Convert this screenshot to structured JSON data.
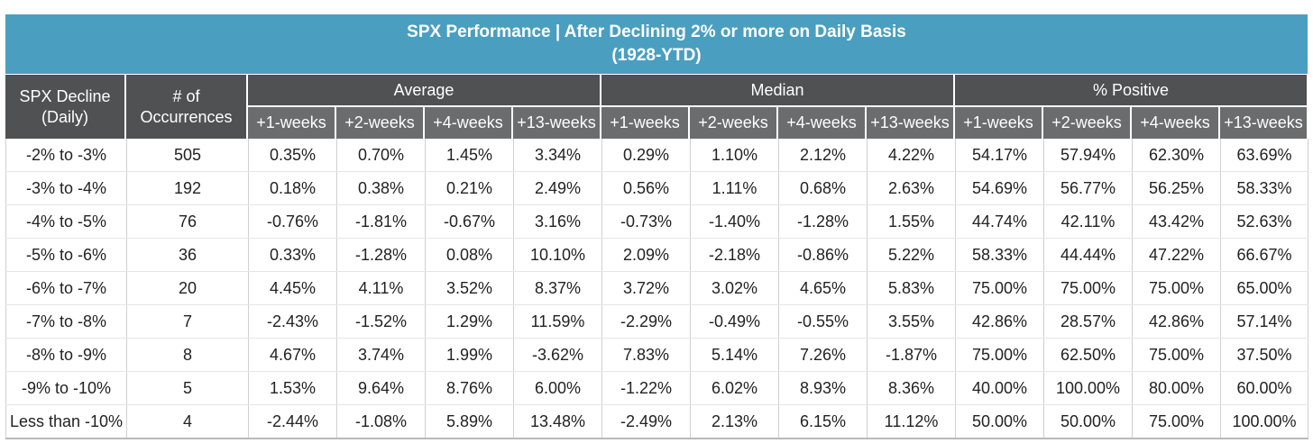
{
  "title": {
    "line1": "SPX Performance | After Declining 2% or more on Daily Basis",
    "line2": "(1928-YTD)"
  },
  "columns": {
    "decline": [
      "SPX Decline",
      "(Daily)"
    ],
    "occurrences": [
      "# of",
      "Occurrences"
    ],
    "groups": [
      "Average",
      "Median",
      "% Positive"
    ],
    "periods": [
      "+1-weeks",
      "+2-weeks",
      "+4-weeks",
      "+13-weeks"
    ]
  },
  "colors": {
    "title_bg": "#4a9fc0",
    "header_bg": "#4f5153",
    "negative": "#b2202a"
  },
  "rows": [
    [
      "-2% to -3%",
      "505",
      "0.35%",
      "0.70%",
      "1.45%",
      "3.34%",
      "0.29%",
      "1.10%",
      "2.12%",
      "4.22%",
      "54.17%",
      "57.94%",
      "62.30%",
      "63.69%"
    ],
    [
      "-3% to -4%",
      "192",
      "0.18%",
      "0.38%",
      "0.21%",
      "2.49%",
      "0.56%",
      "1.11%",
      "0.68%",
      "2.63%",
      "54.69%",
      "56.77%",
      "56.25%",
      "58.33%"
    ],
    [
      "-4% to -5%",
      "76",
      "-0.76%",
      "-1.81%",
      "-0.67%",
      "3.16%",
      "-0.73%",
      "-1.40%",
      "-1.28%",
      "1.55%",
      "44.74%",
      "42.11%",
      "43.42%",
      "52.63%"
    ],
    [
      "-5% to -6%",
      "36",
      "0.33%",
      "-1.28%",
      "0.08%",
      "10.10%",
      "2.09%",
      "-2.18%",
      "-0.86%",
      "5.22%",
      "58.33%",
      "44.44%",
      "47.22%",
      "66.67%"
    ],
    [
      "-6% to -7%",
      "20",
      "4.45%",
      "4.11%",
      "3.52%",
      "8.37%",
      "3.72%",
      "3.02%",
      "4.65%",
      "5.83%",
      "75.00%",
      "75.00%",
      "75.00%",
      "65.00%"
    ],
    [
      "-7% to -8%",
      "7",
      "-2.43%",
      "-1.52%",
      "1.29%",
      "11.59%",
      "-2.29%",
      "-0.49%",
      "-0.55%",
      "3.55%",
      "42.86%",
      "28.57%",
      "42.86%",
      "57.14%"
    ],
    [
      "-8% to -9%",
      "8",
      "4.67%",
      "3.74%",
      "1.99%",
      "-3.62%",
      "7.83%",
      "5.14%",
      "7.26%",
      "-1.87%",
      "75.00%",
      "62.50%",
      "75.00%",
      "37.50%"
    ],
    [
      "-9% to -10%",
      "5",
      "1.53%",
      "9.64%",
      "8.76%",
      "6.00%",
      "-1.22%",
      "6.02%",
      "8.93%",
      "8.36%",
      "40.00%",
      "100.00%",
      "80.00%",
      "60.00%"
    ],
    [
      "Less than -10%",
      "4",
      "-2.44%",
      "-1.08%",
      "5.89%",
      "13.48%",
      "-2.49%",
      "2.13%",
      "6.15%",
      "11.12%",
      "50.00%",
      "50.00%",
      "75.00%",
      "100.00%"
    ]
  ]
}
